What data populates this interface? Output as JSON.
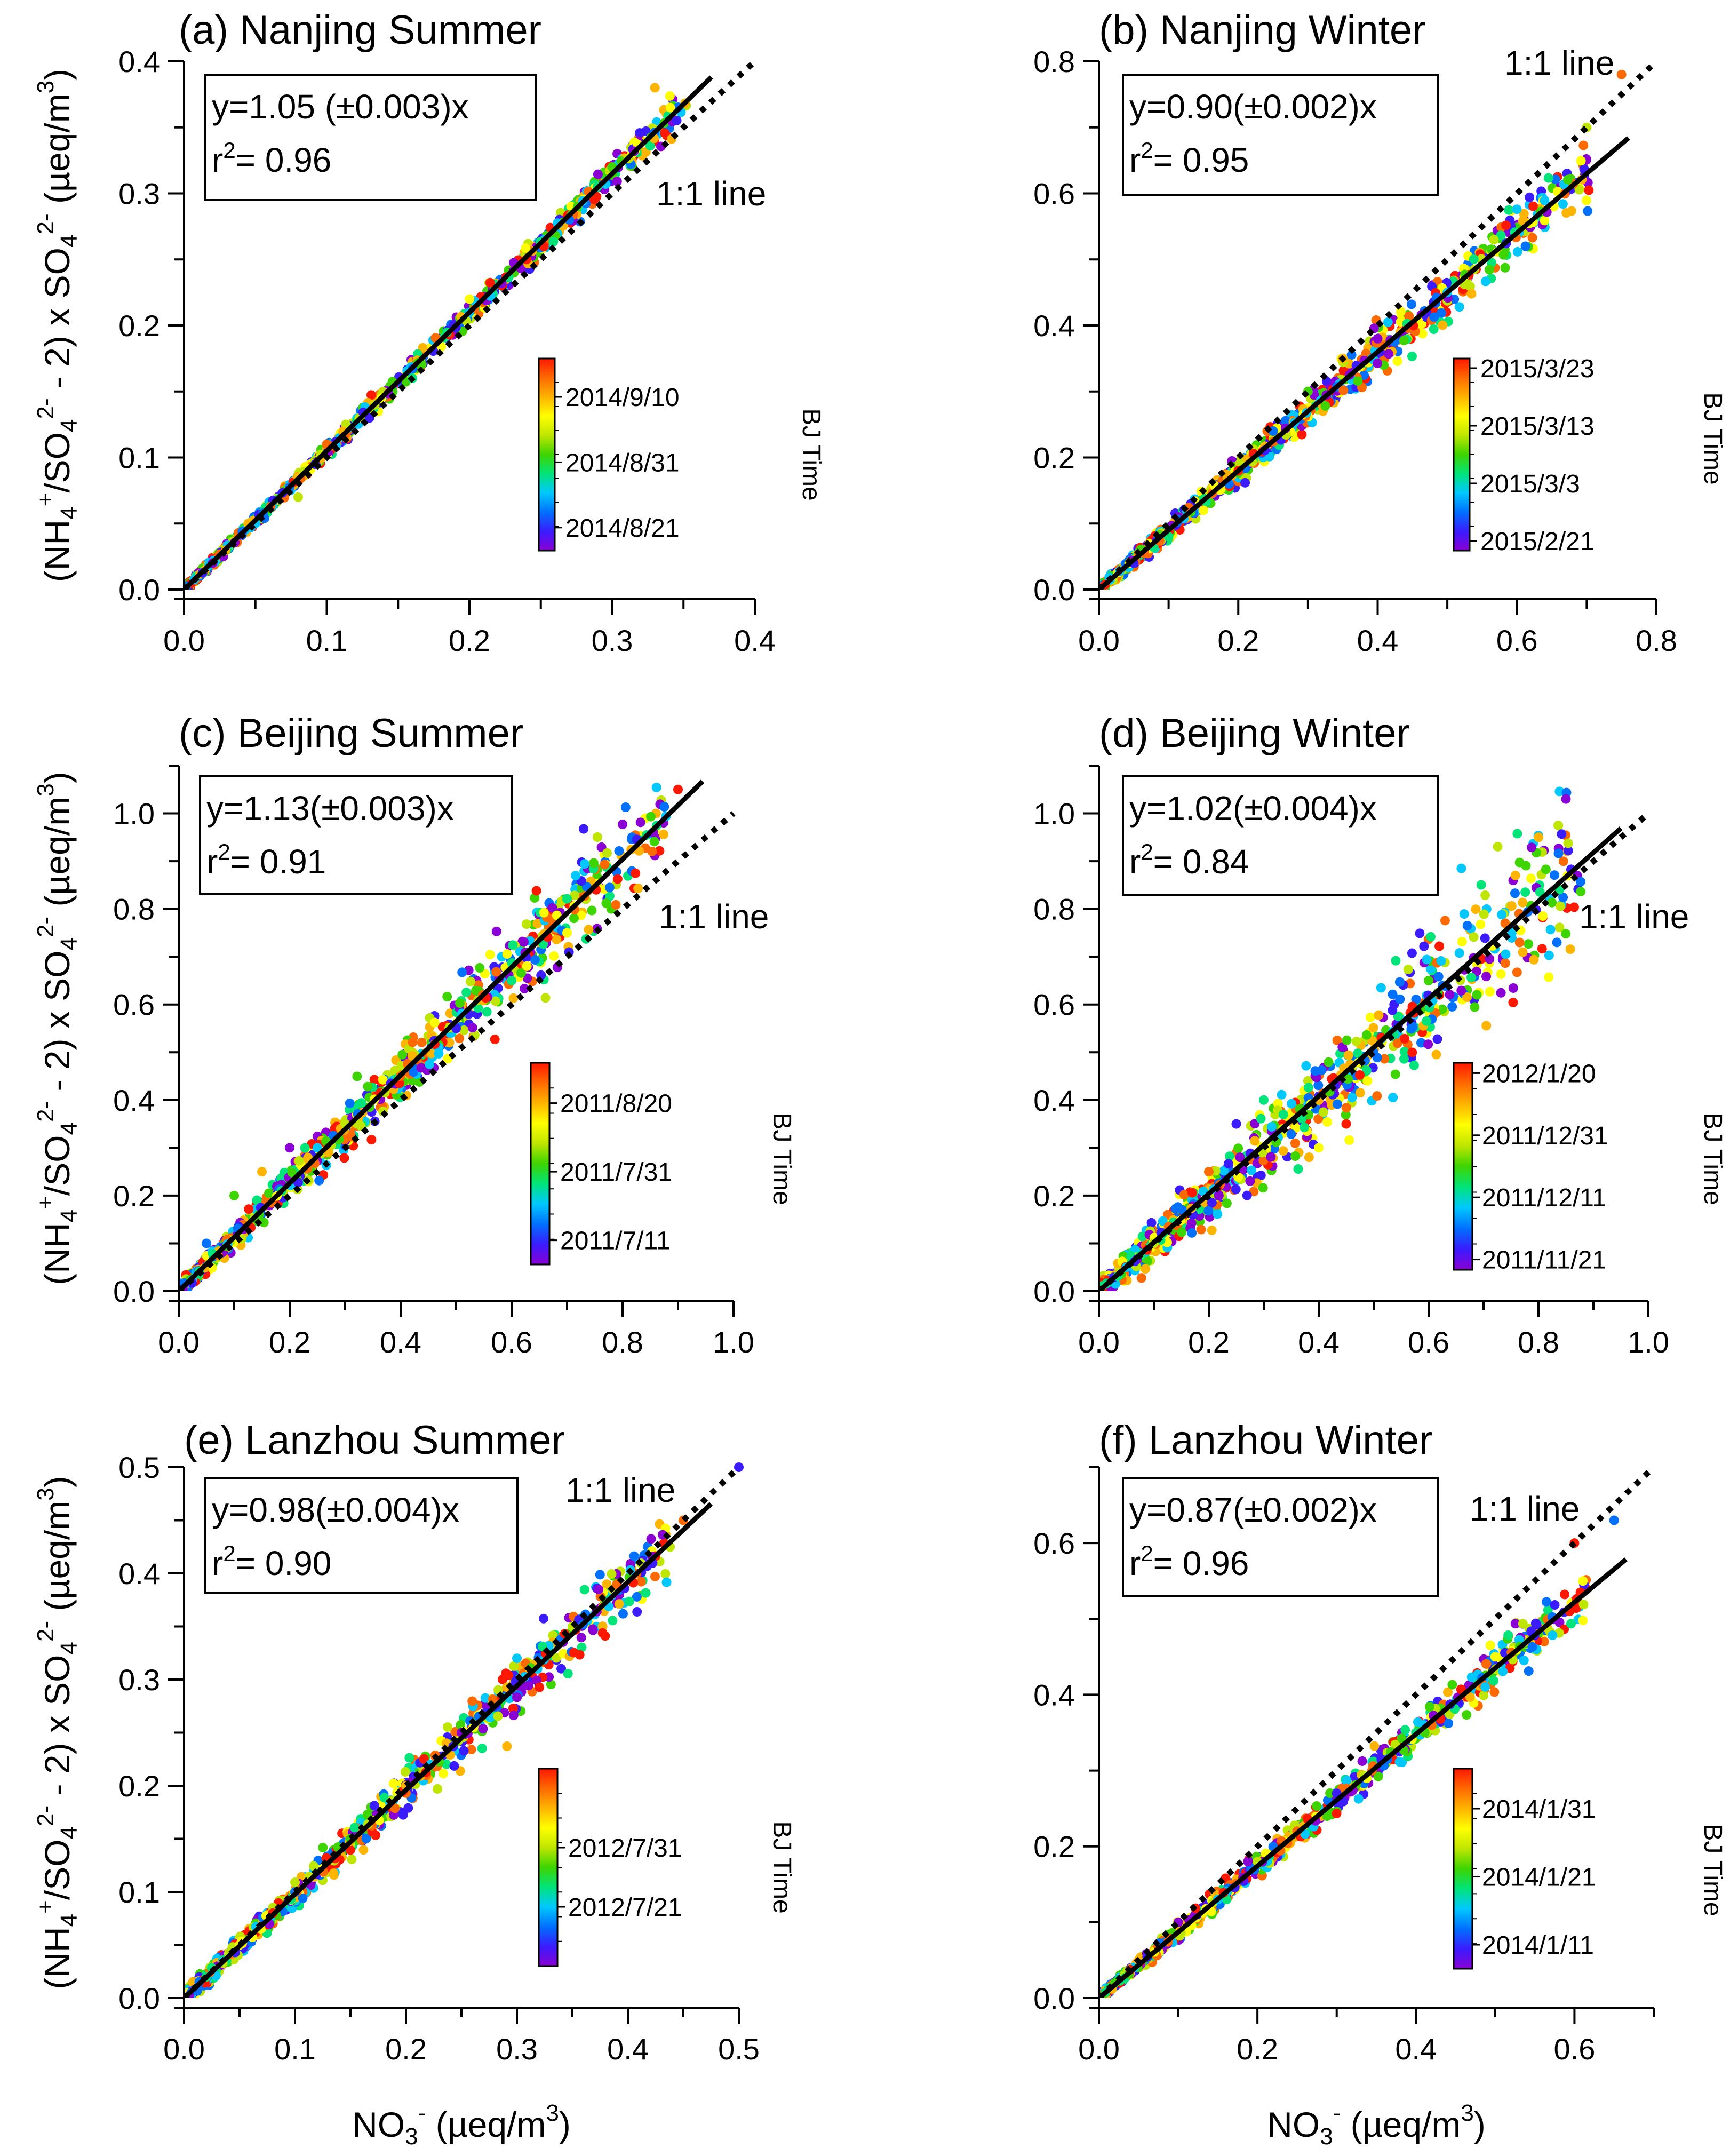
{
  "colors": {
    "rainbow": [
      "#8a00d4",
      "#3a1cff",
      "#0070ff",
      "#00c8ff",
      "#00e47a",
      "#3ed400",
      "#bfe600",
      "#ffff00",
      "#ffb400",
      "#ff6a00",
      "#ff1800"
    ],
    "fit_line": "#000000",
    "one_to_one": "#000000"
  },
  "shared": {
    "one_to_one_label": "1:1 line",
    "colorbar_title": "BJ Time",
    "ylabel_text": "(NH4+/SO42- - 2) x SO42- (µeq/m3)",
    "xlabel_text": "NO3- (µeq/m3)"
  },
  "chart_data": [
    {
      "type": "scatter",
      "id": "a",
      "title": "(a) Nanjing Summer",
      "equation": "y=1.05 (±0.003)x",
      "r2_text": "r",
      "r2_value": "= 0.96",
      "slope": 1.05,
      "r2": 0.96,
      "xlim": [
        0,
        0.4
      ],
      "ylim": [
        0,
        0.4
      ],
      "xticks": [
        "0.0",
        "0.1",
        "0.2",
        "0.3",
        "0.4"
      ],
      "yticks": [
        "0.0",
        "0.1",
        "0.2",
        "0.3",
        "0.4"
      ],
      "colorbar_ticks": [
        "2014/8/21",
        "2014/8/31",
        "2014/9/10"
      ],
      "xlabel": "",
      "ylabel_side": true,
      "sample_points": [
        [
          0.02,
          0.02
        ],
        [
          0.05,
          0.05
        ],
        [
          0.08,
          0.07
        ],
        [
          0.1,
          0.11
        ],
        [
          0.13,
          0.13
        ],
        [
          0.16,
          0.16
        ],
        [
          0.2,
          0.22
        ],
        [
          0.24,
          0.25
        ],
        [
          0.27,
          0.28
        ],
        [
          0.3,
          0.32
        ],
        [
          0.33,
          0.38
        ]
      ]
    },
    {
      "type": "scatter",
      "id": "b",
      "title": "(b) Nanjing Winter",
      "equation": "y=0.90(±0.002)x",
      "r2_text": "r",
      "r2_value": "= 0.95",
      "slope": 0.9,
      "r2": 0.95,
      "xlim": [
        0,
        0.8
      ],
      "ylim": [
        0,
        0.8
      ],
      "xticks": [
        "0.0",
        "0.2",
        "0.4",
        "0.6",
        "0.8"
      ],
      "yticks": [
        "0.0",
        "0.2",
        "0.4",
        "0.6",
        "0.8"
      ],
      "colorbar_ticks": [
        "2015/2/21",
        "2015/3/3",
        "2015/3/13",
        "2015/3/23"
      ],
      "xlabel": "",
      "ylabel_side": false,
      "sample_points": [
        [
          0.05,
          0.04
        ],
        [
          0.1,
          0.08
        ],
        [
          0.15,
          0.12
        ],
        [
          0.2,
          0.18
        ],
        [
          0.25,
          0.24
        ],
        [
          0.3,
          0.3
        ],
        [
          0.35,
          0.35
        ],
        [
          0.4,
          0.38
        ],
        [
          0.5,
          0.45
        ],
        [
          0.7,
          0.7
        ],
        [
          0.75,
          0.78
        ]
      ]
    },
    {
      "type": "scatter",
      "id": "c",
      "title": "(c) Beijing Summer",
      "equation": "y=1.13(±0.003)x",
      "r2_text": "r",
      "r2_value": "= 0.91",
      "slope": 1.13,
      "r2": 0.91,
      "xlim": [
        0,
        1.0
      ],
      "ylim": [
        0,
        1.1
      ],
      "xticks": [
        "0.0",
        "0.2",
        "0.4",
        "0.6",
        "0.8",
        "1.0"
      ],
      "yticks": [
        "0.0",
        "0.2",
        "0.4",
        "0.6",
        "0.8",
        "1.0"
      ],
      "colorbar_ticks": [
        "2011/7/11",
        "2011/7/31",
        "2011/8/20"
      ],
      "xlabel": "",
      "ylabel_side": true,
      "sample_points": [
        [
          0.05,
          0.1
        ],
        [
          0.1,
          0.2
        ],
        [
          0.15,
          0.25
        ],
        [
          0.2,
          0.3
        ],
        [
          0.25,
          0.3
        ],
        [
          0.3,
          0.35
        ],
        [
          0.4,
          0.45
        ],
        [
          0.5,
          0.55
        ],
        [
          0.6,
          0.65
        ],
        [
          0.7,
          0.75
        ],
        [
          0.9,
          1.05
        ]
      ]
    },
    {
      "type": "scatter",
      "id": "d",
      "title": "(d) Beijing Winter",
      "equation": "y=1.02(±0.004)x",
      "r2_text": "r",
      "r2_value": "= 0.84",
      "slope": 1.02,
      "r2": 0.84,
      "xlim": [
        0,
        1.0
      ],
      "ylim": [
        0,
        1.1
      ],
      "xticks": [
        "0.0",
        "0.2",
        "0.4",
        "0.6",
        "0.8",
        "1.0"
      ],
      "yticks": [
        "0.0",
        "0.2",
        "0.4",
        "0.6",
        "0.8",
        "1.0"
      ],
      "colorbar_ticks": [
        "2011/11/21",
        "2011/12/11",
        "2011/12/31",
        "2012/1/20"
      ],
      "xlabel": "",
      "ylabel_side": false,
      "sample_points": [
        [
          0.05,
          0.05
        ],
        [
          0.1,
          0.1
        ],
        [
          0.2,
          0.25
        ],
        [
          0.25,
          0.35
        ],
        [
          0.3,
          0.4
        ],
        [
          0.4,
          0.3
        ],
        [
          0.45,
          0.35
        ],
        [
          0.5,
          0.5
        ],
        [
          0.6,
          0.65
        ],
        [
          0.8,
          0.95
        ],
        [
          0.85,
          1.03
        ]
      ]
    },
    {
      "type": "scatter",
      "id": "e",
      "title": "(e) Lanzhou Summer",
      "equation": "y=0.98(±0.004)x",
      "r2_text": "r",
      "r2_value": "= 0.90",
      "slope": 0.98,
      "r2": 0.9,
      "xlim": [
        0,
        0.5
      ],
      "ylim": [
        0,
        0.5
      ],
      "xticks": [
        "0.0",
        "0.1",
        "0.2",
        "0.3",
        "0.4",
        "0.5"
      ],
      "yticks": [
        "0.0",
        "0.1",
        "0.2",
        "0.3",
        "0.4",
        "0.5"
      ],
      "colorbar_ticks": [
        "2012/7/21",
        "2012/7/31"
      ],
      "xlabel": "NO3- (µeq/m3)",
      "ylabel_side": true,
      "sample_points": [
        [
          0.02,
          0.02
        ],
        [
          0.05,
          0.05
        ],
        [
          0.08,
          0.08
        ],
        [
          0.1,
          0.1
        ],
        [
          0.15,
          0.15
        ],
        [
          0.2,
          0.2
        ],
        [
          0.25,
          0.25
        ],
        [
          0.3,
          0.32
        ],
        [
          0.35,
          0.35
        ],
        [
          0.45,
          0.45
        ],
        [
          0.5,
          0.5
        ]
      ]
    },
    {
      "type": "scatter",
      "id": "f",
      "title": "(f) Lanzhou Winter",
      "equation": "y=0.87(±0.002)x",
      "r2_text": "r",
      "r2_value": "= 0.96",
      "slope": 0.87,
      "r2": 0.96,
      "xlim": [
        0,
        0.7
      ],
      "ylim": [
        0,
        0.7
      ],
      "xticks": [
        "0.0",
        "0.2",
        "0.4",
        "0.6"
      ],
      "yticks": [
        "0.0",
        "0.2",
        "0.4",
        "0.6"
      ],
      "colorbar_ticks": [
        "2014/1/11",
        "2014/1/21",
        "2014/1/31"
      ],
      "xlabel": "NO3- (µeq/m3)",
      "ylabel_side": false,
      "sample_points": [
        [
          0.02,
          0.02
        ],
        [
          0.05,
          0.05
        ],
        [
          0.1,
          0.1
        ],
        [
          0.15,
          0.13
        ],
        [
          0.2,
          0.18
        ],
        [
          0.25,
          0.22
        ],
        [
          0.3,
          0.27
        ],
        [
          0.4,
          0.35
        ],
        [
          0.5,
          0.45
        ],
        [
          0.6,
          0.6
        ],
        [
          0.65,
          0.63
        ]
      ]
    }
  ]
}
